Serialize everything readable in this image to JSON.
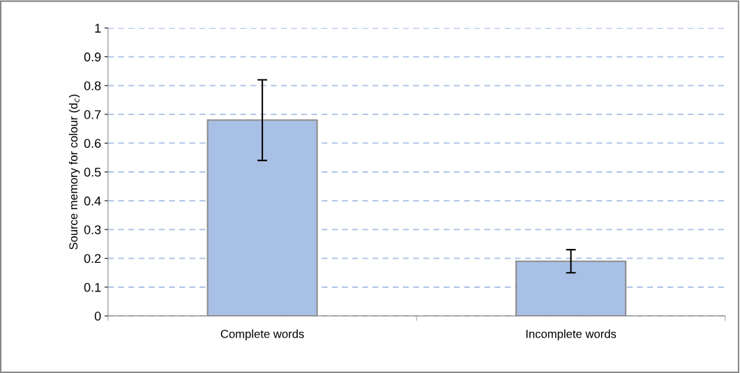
{
  "chart_data": {
    "type": "bar",
    "ylabel": "Source memory for colour (d$_{c}$)",
    "categories": [
      "Complete words",
      "Incomplete words"
    ],
    "values": [
      0.68,
      0.19
    ],
    "errors": [
      0.14,
      0.04
    ],
    "color": "#a9c0e6",
    "ylim": [
      0,
      1
    ],
    "yticks": [
      0,
      0.1,
      0.2,
      0.3,
      0.4,
      0.5,
      0.6,
      0.7,
      0.8,
      0.9,
      1
    ],
    "grid": "y",
    "legend": false
  }
}
